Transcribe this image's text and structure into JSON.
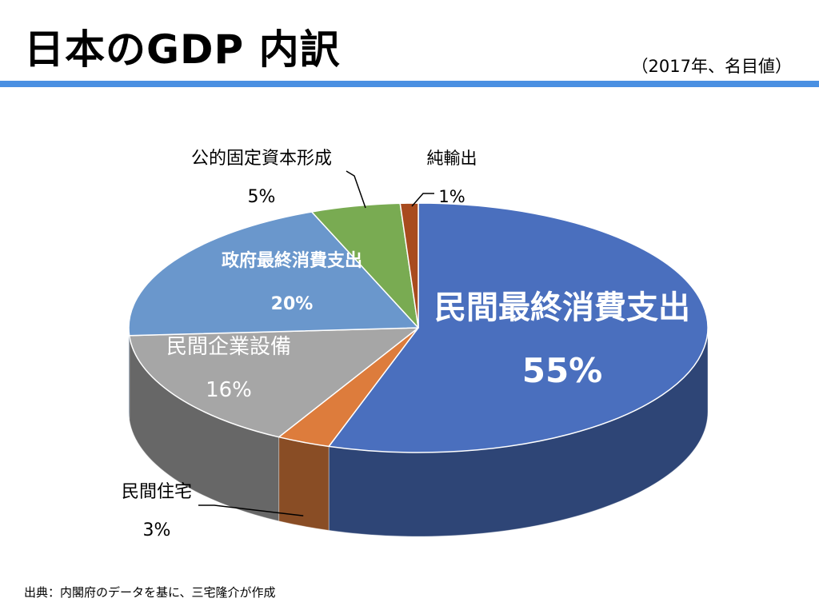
{
  "page": {
    "title": "日本のGDP 内訳",
    "subtitle": "（2017年、名目値）",
    "source": "出典：内閣府のデータを基に、三宅隆介が作成",
    "accent_color": "#4a90e2"
  },
  "chart_data": {
    "type": "pie",
    "style": "3d",
    "categories": [
      "民間最終消費支出",
      "民間住宅",
      "民間企業設備",
      "政府最終消費支出",
      "公的固定資本形成",
      "純輸出"
    ],
    "values": [
      55,
      3,
      16,
      20,
      5,
      1
    ],
    "value_labels": [
      "55%",
      "3%",
      "16%",
      "20%",
      "5%",
      "1%"
    ],
    "colors": [
      "#4a6fbe",
      "#dd7c3c",
      "#a6a6a6",
      "#6a97cc",
      "#79ab52",
      "#a84b1e"
    ],
    "label_colors": [
      "#ffffff",
      "#000000",
      "#ffffff",
      "#ffffff",
      "#000000",
      "#000000"
    ],
    "label_positions": [
      "inside",
      "outside",
      "inside",
      "inside",
      "outside",
      "outside"
    ],
    "legend": "none"
  }
}
